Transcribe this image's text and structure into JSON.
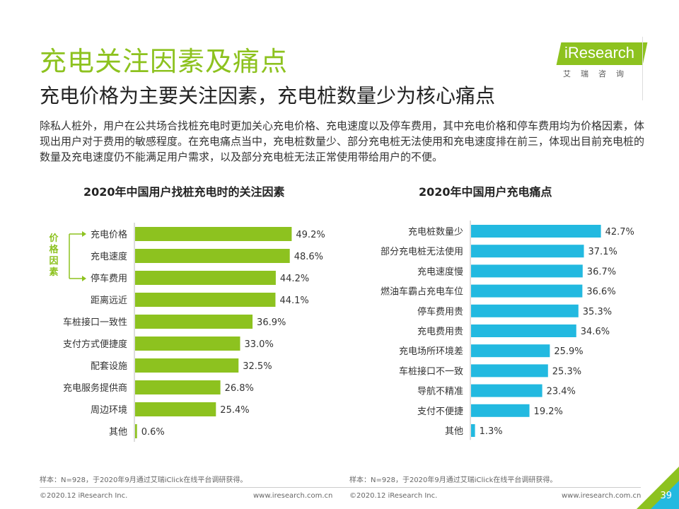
{
  "page": {
    "title": "充电关注因素及痛点",
    "subtitle": "充电价格为主要关注因素，充电桩数量少为核心痛点",
    "description": "除私人桩外，用户在公共场合找桩充电时更加关心充电价格、充电速度以及停车费用，其中充电价格和停车费用均为价格因素，体现出用户对于费用的敏感程度。在充电痛点当中，充电桩数量少、部分充电桩无法使用和充电速度排在前三，体现出目前充电桩的数量及充电速度仍不能满足用户需求，以及部分充电桩无法正常使用带给用户的不便。",
    "logo_text": "iResearch",
    "logo_sub": "艾瑞咨询",
    "bracket_label": "价格因素",
    "note_left": "样本：N=928，于2020年9月通过艾瑞iClick在线平台调研获得。",
    "note_right": "样本：N=928，于2020年9月通过艾瑞iClick在线平台调研获得。",
    "copyright_left": "©2020.12 iResearch Inc.",
    "url_left": "www.iresearch.com.cn",
    "copyright_right": "©2020.12 iResearch Inc.",
    "url_right": "www.iresearch.com.cn",
    "page_number": "39",
    "colors": {
      "green": "#8DC21F",
      "blue": "#22B9E0"
    }
  },
  "chart_data": [
    {
      "type": "bar",
      "orientation": "horizontal",
      "title": "2020年中国用户找桩充电时的关注因素",
      "categories": [
        "充电价格",
        "充电速度",
        "停车费用",
        "距离远近",
        "车桩接口一致性",
        "支付方式便捷度",
        "配套设施",
        "充电服务提供商",
        "周边环境",
        "其他"
      ],
      "values": [
        49.2,
        48.6,
        44.2,
        44.1,
        36.9,
        33.0,
        32.5,
        26.8,
        25.4,
        0.6
      ],
      "labels": [
        "49.2%",
        "48.6%",
        "44.2%",
        "44.1%",
        "36.9%",
        "33.0%",
        "32.5%",
        "26.8%",
        "25.4%",
        "0.6%"
      ],
      "color": "#8DC21F",
      "xlim": [
        0,
        60
      ]
    },
    {
      "type": "bar",
      "orientation": "horizontal",
      "title": "2020年中国用户充电痛点",
      "categories": [
        "充电桩数量少",
        "部分充电桩无法使用",
        "充电速度慢",
        "燃油车霸占充电车位",
        "停车费用贵",
        "充电费用贵",
        "充电场所环境差",
        "车桩接口不一致",
        "导航不精准",
        "支付不便捷",
        "其他"
      ],
      "values": [
        42.7,
        37.1,
        36.7,
        36.6,
        35.3,
        34.6,
        25.9,
        25.3,
        23.4,
        19.2,
        1.3
      ],
      "labels": [
        "42.7%",
        "37.1%",
        "36.7%",
        "36.6%",
        "35.3%",
        "34.6%",
        "25.9%",
        "25.3%",
        "23.4%",
        "19.2%",
        "1.3%"
      ],
      "color": "#22B9E0",
      "xlim": [
        0,
        50
      ]
    }
  ]
}
